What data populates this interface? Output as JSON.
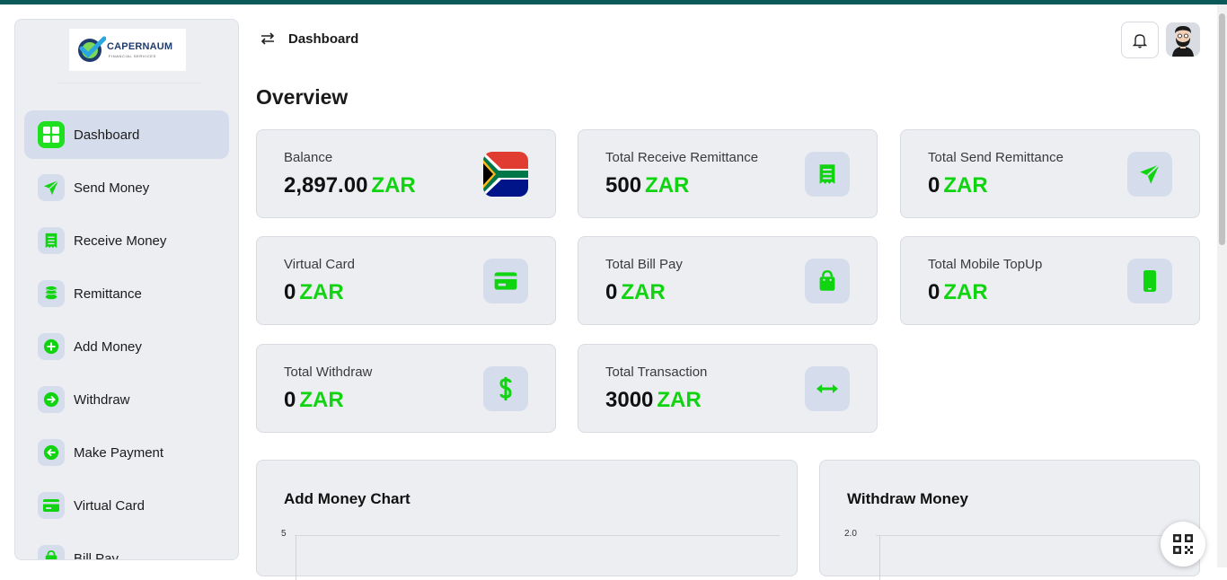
{
  "brand": {
    "name": "CAPERNAUM",
    "tagline": "FINANCIAL SERVICES",
    "accent": "#1ee01e",
    "topbar_color": "#0b5a57"
  },
  "sidebar": {
    "items": [
      {
        "label": "Dashboard",
        "icon": "grid-icon",
        "active": true
      },
      {
        "label": "Send Money",
        "icon": "send-icon",
        "active": false
      },
      {
        "label": "Receive Money",
        "icon": "receipt-icon",
        "active": false
      },
      {
        "label": "Remittance",
        "icon": "coins-icon",
        "active": false
      },
      {
        "label": "Add Money",
        "icon": "plus-circle-icon",
        "active": false
      },
      {
        "label": "Withdraw",
        "icon": "arrow-right-circle-icon",
        "active": false
      },
      {
        "label": "Make Payment",
        "icon": "arrow-left-circle-icon",
        "active": false
      },
      {
        "label": "Virtual Card",
        "icon": "card-icon",
        "active": false
      },
      {
        "label": "Bill Pay",
        "icon": "bag-icon",
        "active": false
      }
    ]
  },
  "header": {
    "title": "Dashboard"
  },
  "overview": {
    "title": "Overview",
    "cards": [
      {
        "label": "Balance",
        "amount": "2,897.00",
        "currency": "ZAR",
        "icon": "south-africa-flag-icon"
      },
      {
        "label": "Total Receive Remittance",
        "amount": "500",
        "currency": "ZAR",
        "icon": "receipt-icon"
      },
      {
        "label": "Total Send Remittance",
        "amount": "0",
        "currency": "ZAR",
        "icon": "send-icon"
      },
      {
        "label": "Virtual Card",
        "amount": "0",
        "currency": "ZAR",
        "icon": "card-icon"
      },
      {
        "label": "Total Bill Pay",
        "amount": "0",
        "currency": "ZAR",
        "icon": "bag-icon"
      },
      {
        "label": "Total Mobile TopUp",
        "amount": "0",
        "currency": "ZAR",
        "icon": "mobile-icon"
      },
      {
        "label": "Total Withdraw",
        "amount": "0",
        "currency": "ZAR",
        "icon": "dollar-icon"
      },
      {
        "label": "Total Transaction",
        "amount": "3000",
        "currency": "ZAR",
        "icon": "exchange-icon"
      }
    ]
  },
  "charts": {
    "add_money": {
      "title": "Add Money Chart",
      "top_tick": "5"
    },
    "withdraw": {
      "title": "Withdraw Money",
      "top_tick": "2.0"
    }
  }
}
